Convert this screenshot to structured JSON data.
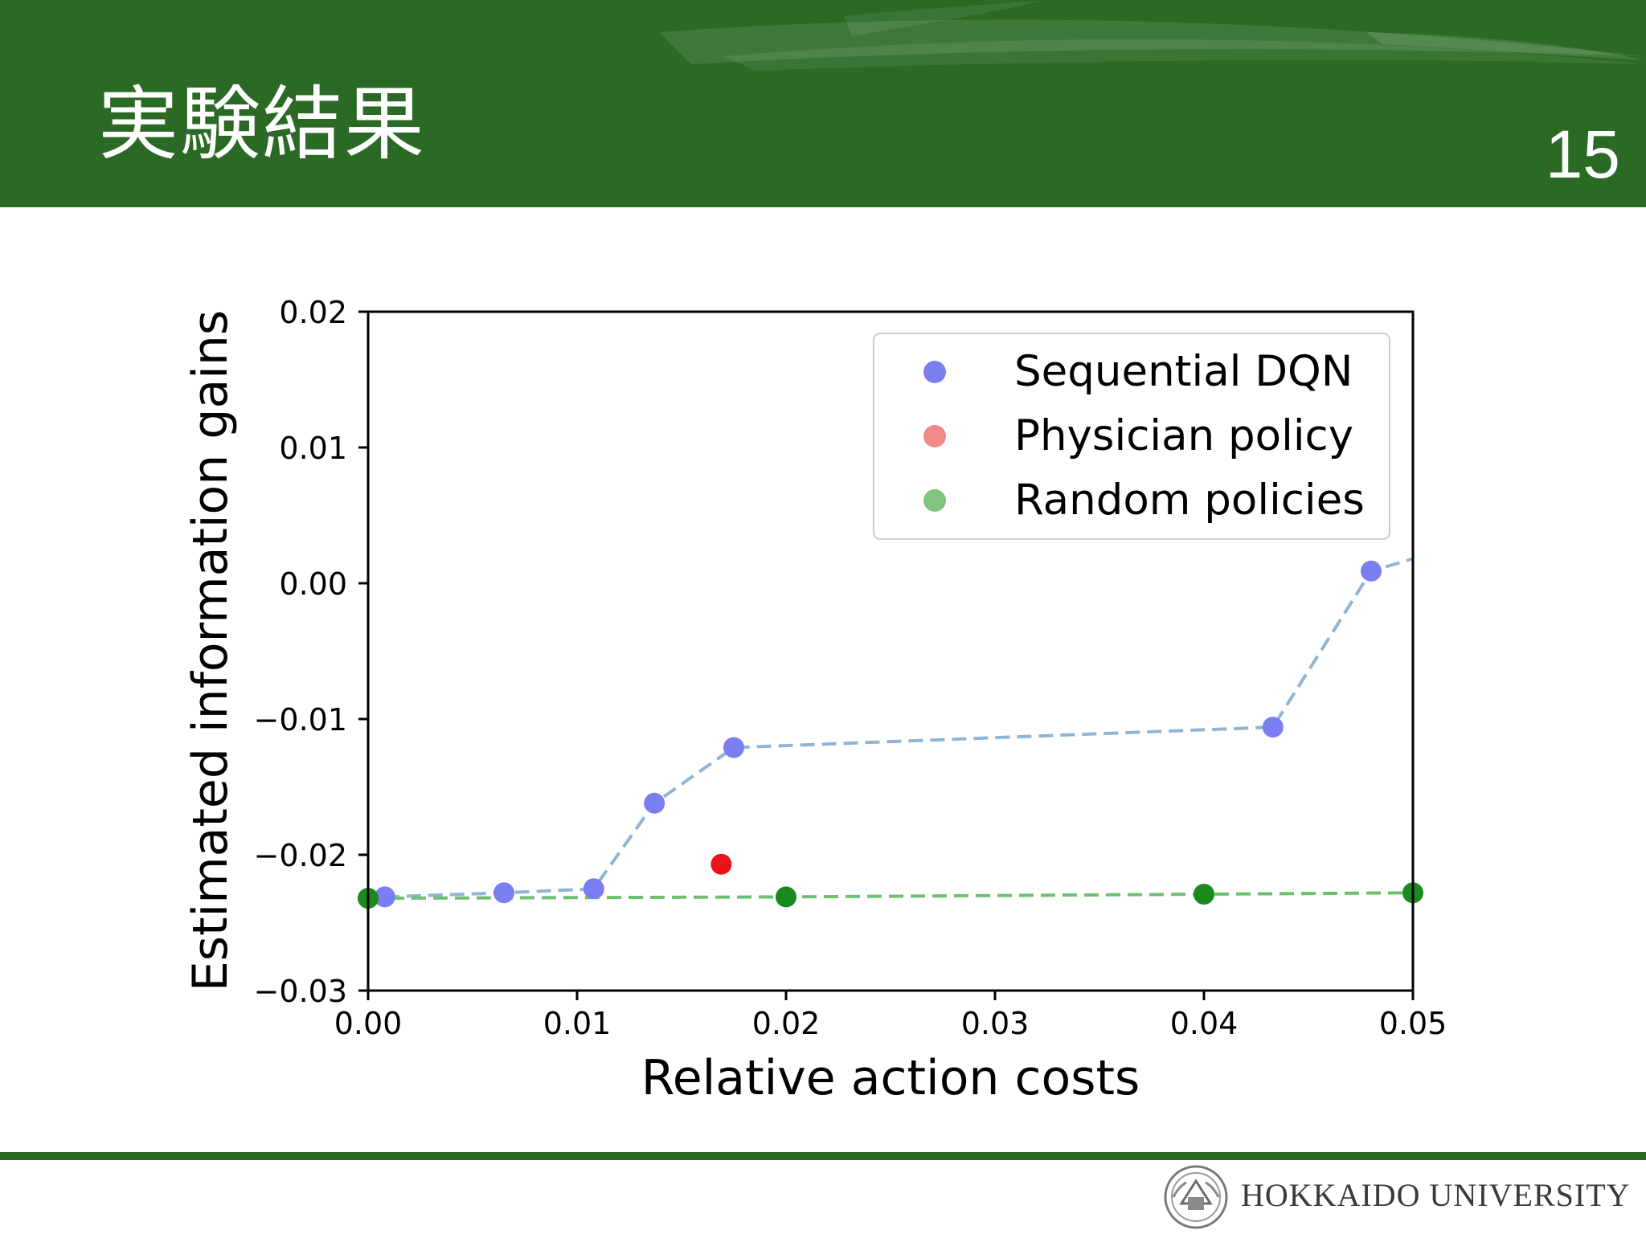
{
  "slide": {
    "title": "実験結果",
    "page_number": "15",
    "footer_text": "HOKKAIDO UNIVERSITY"
  },
  "colors": {
    "header_green": "#2a6a24",
    "dqn_point": "#7b7ef0",
    "dqn_line": "#8fb5d6",
    "physician_point": "#e8141a",
    "random_point": "#1a8a1f",
    "random_line": "#6fbf70"
  },
  "icons": {
    "footer_logo": "university-crest-icon"
  },
  "chart_data": {
    "type": "scatter",
    "title": "",
    "xlabel": "Relative action costs",
    "ylabel": "Estimated information gains",
    "xlim": [
      0.0,
      0.05
    ],
    "ylim": [
      -0.03,
      0.02
    ],
    "xticks": [
      0.0,
      0.01,
      0.02,
      0.03,
      0.04,
      0.05
    ],
    "xtick_labels": [
      "0.00",
      "0.01",
      "0.02",
      "0.03",
      "0.04",
      "0.05"
    ],
    "yticks": [
      0.02,
      0.01,
      0.0,
      -0.01,
      -0.02,
      -0.03
    ],
    "ytick_labels": [
      "0.02",
      "0.01",
      "0.00",
      "−0.01",
      "−0.02",
      "−0.03"
    ],
    "grid": false,
    "legend_position": "top-right",
    "series": [
      {
        "name": "Sequential DQN",
        "marker_color": "#7b7ef0",
        "line": "dashed",
        "line_color": "#8fb5d6",
        "points": [
          {
            "x": 0.0008,
            "y": -0.0231
          },
          {
            "x": 0.0065,
            "y": -0.0228
          },
          {
            "x": 0.0108,
            "y": -0.0225
          },
          {
            "x": 0.0137,
            "y": -0.0162
          },
          {
            "x": 0.0175,
            "y": -0.0121
          },
          {
            "x": 0.0433,
            "y": -0.0106
          },
          {
            "x": 0.048,
            "y": 0.0009
          }
        ],
        "line_extends_to": {
          "x": 0.05,
          "y": 0.0018
        }
      },
      {
        "name": "Physician policy",
        "marker_color": "#e8141a",
        "line": "none",
        "points": [
          {
            "x": 0.0169,
            "y": -0.0207
          }
        ]
      },
      {
        "name": "Random policies",
        "marker_color": "#1a8a1f",
        "line": "dashed",
        "line_color": "#6fbf70",
        "points": [
          {
            "x": 0.0,
            "y": -0.0232
          },
          {
            "x": 0.02,
            "y": -0.0231
          },
          {
            "x": 0.04,
            "y": -0.0229
          },
          {
            "x": 0.05,
            "y": -0.0228
          }
        ]
      }
    ],
    "legend": [
      {
        "label": "Sequential DQN",
        "color": "#7b7ef0"
      },
      {
        "label": "Physician policy",
        "color": "#f08a8a"
      },
      {
        "label": "Random policies",
        "color": "#7fc47f"
      }
    ]
  }
}
